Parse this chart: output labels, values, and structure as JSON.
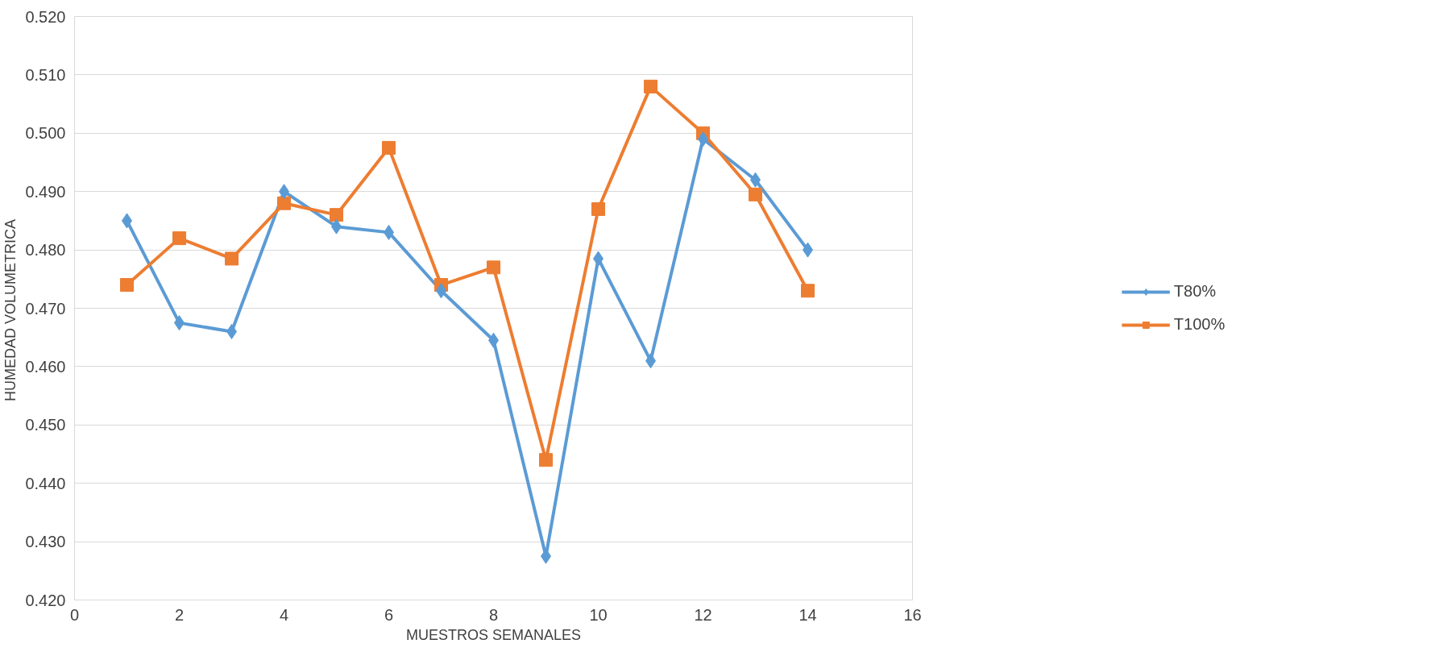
{
  "chart_data": {
    "type": "line",
    "xlabel": "MUESTROS SEMANALES",
    "ylabel": "HUMEDAD  VOLUMETRICA",
    "x": [
      1,
      2,
      3,
      4,
      5,
      6,
      7,
      8,
      9,
      10,
      11,
      12,
      13,
      14
    ],
    "series": [
      {
        "name": "T80%",
        "color": "#5b9bd5",
        "marker": "diamond",
        "values": [
          0.485,
          0.4675,
          0.466,
          0.49,
          0.484,
          0.483,
          0.473,
          0.4645,
          0.4275,
          0.4785,
          0.461,
          0.499,
          0.492,
          0.48
        ]
      },
      {
        "name": "T100%",
        "color": "#ed7d31",
        "marker": "square",
        "values": [
          0.474,
          0.482,
          0.4785,
          0.488,
          0.486,
          0.4975,
          0.474,
          0.477,
          0.444,
          0.487,
          0.508,
          0.5,
          0.4895,
          0.473
        ]
      }
    ],
    "xlim": [
      0,
      16
    ],
    "xticks": [
      0,
      2,
      4,
      6,
      8,
      10,
      12,
      14,
      16
    ],
    "ylim": [
      0.42,
      0.52
    ],
    "yticks": [
      {
        "value": 0.42,
        "label": "0.420"
      },
      {
        "value": 0.43,
        "label": "0.430"
      },
      {
        "value": 0.44,
        "label": "0.440"
      },
      {
        "value": 0.45,
        "label": "0.450"
      },
      {
        "value": 0.46,
        "label": "0.460"
      },
      {
        "value": 0.47,
        "label": "0.470"
      },
      {
        "value": 0.48,
        "label": "0.480"
      },
      {
        "value": 0.49,
        "label": "0.490"
      },
      {
        "value": 0.5,
        "label": "0.500"
      },
      {
        "value": 0.51,
        "label": "0.510"
      },
      {
        "value": 0.52,
        "label": "0.520"
      }
    ],
    "grid": "y",
    "legend": "right",
    "line_style": "solid"
  }
}
